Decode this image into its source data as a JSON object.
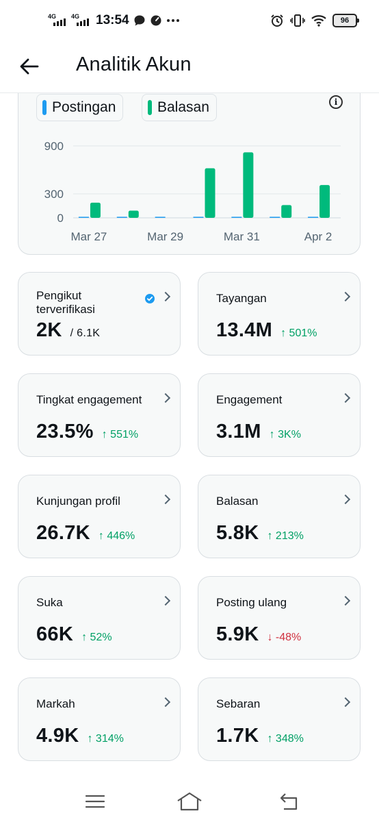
{
  "status_bar": {
    "time": "13:54",
    "network_1": "4G",
    "network_2": "4G",
    "battery": "96",
    "icons": [
      "chat-bubble-icon",
      "speed-icon",
      "more-dots-icon",
      "alarm-icon",
      "vibrate-icon",
      "wifi-icon"
    ]
  },
  "header": {
    "title": "Analitik Akun",
    "back_icon": "arrow-left-icon"
  },
  "chart_data": {
    "type": "bar",
    "categories": [
      "Mar 27",
      "Mar 28",
      "Mar 29",
      "Mar 30",
      "Mar 31",
      "Apr 1",
      "Apr 2"
    ],
    "x_tick_labels": [
      "Mar 27",
      "Mar 29",
      "Mar 31",
      "Apr 2"
    ],
    "y_ticks": [
      "900",
      "300",
      "0"
    ],
    "ylim": [
      0,
      1000
    ],
    "grid": true,
    "legend_position": "top-left",
    "series": [
      {
        "name": "Postingan",
        "color": "#1d9bf0",
        "values": [
          4,
          3,
          2,
          4,
          5,
          4,
          4
        ]
      },
      {
        "name": "Balasan",
        "color": "#00ba7c",
        "values": [
          190,
          90,
          0,
          620,
          820,
          160,
          410
        ]
      }
    ]
  },
  "metrics": [
    {
      "label": "Pengikut terverifikasi",
      "value": "2K",
      "total": "/ 6.1K",
      "verified": true
    },
    {
      "label": "Tayangan",
      "value": "13.4M",
      "delta": "↑ 501%",
      "direction": "up"
    },
    {
      "label": "Tingkat engagement",
      "value": "23.5%",
      "delta": "↑ 551%",
      "direction": "up"
    },
    {
      "label": "Engagement",
      "value": "3.1M",
      "delta": "↑ 3K%",
      "direction": "up"
    },
    {
      "label": "Kunjungan profil",
      "value": "26.7K",
      "delta": "↑ 446%",
      "direction": "up"
    },
    {
      "label": "Balasan",
      "value": "5.8K",
      "delta": "↑ 213%",
      "direction": "up"
    },
    {
      "label": "Suka",
      "value": "66K",
      "delta": "↑ 52%",
      "direction": "up"
    },
    {
      "label": "Posting ulang",
      "value": "5.9K",
      "delta": "↓ -48%",
      "direction": "down"
    },
    {
      "label": "Markah",
      "value": "4.9K",
      "delta": "↑ 314%",
      "direction": "up"
    },
    {
      "label": "Sebaran",
      "value": "1.7K",
      "delta": "↑ 348%",
      "direction": "up"
    }
  ],
  "colors": {
    "accent_blue": "#1d9bf0",
    "accent_green": "#00ba7c",
    "up": "#00a065",
    "down": "#d0313f"
  }
}
